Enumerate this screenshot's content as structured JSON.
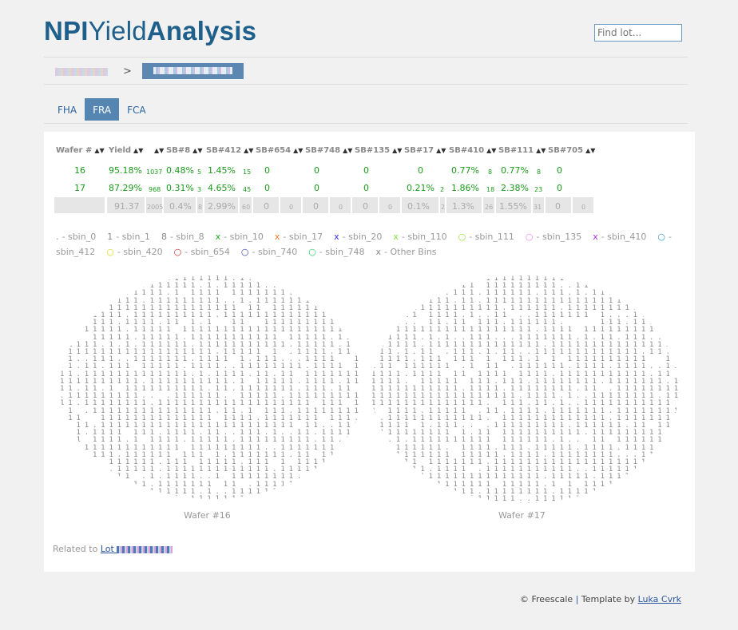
{
  "logo": {
    "part1": "NPI",
    "part2": "Yield",
    "part3": "Analysis"
  },
  "search": {
    "placeholder": "Find lot..."
  },
  "breadcrumb": {
    "separator": ">"
  },
  "tabs": [
    {
      "label": "FHA",
      "active": false
    },
    {
      "label": "FRA",
      "active": true
    },
    {
      "label": "FCA",
      "active": false
    }
  ],
  "table": {
    "headers": [
      "Wafer #",
      "Yield",
      "SB#8",
      "SB#412",
      "SB#654",
      "SB#748",
      "SB#135",
      "SB#17",
      "SB#410",
      "SB#111",
      "SB#705"
    ],
    "rows": [
      {
        "wafer": "16",
        "yield": "95.18%",
        "yield_count": "1037",
        "sb8": "0.48%",
        "sb8_c": "5",
        "sb412": "1.45%",
        "sb412_c": "15",
        "sb654": "0",
        "sb748": "0",
        "sb135": "0",
        "sb17": "0",
        "sb17_c": "",
        "sb410": "0.77%",
        "sb410_c": "8",
        "sb111": "0.77%",
        "sb111_c": "8",
        "sb705": "0"
      },
      {
        "wafer": "17",
        "yield": "87.29%",
        "yield_count": "968",
        "sb8": "0.31%",
        "sb8_c": "3",
        "sb412": "4.65%",
        "sb412_c": "45",
        "sb654": "0",
        "sb748": "0",
        "sb135": "0",
        "sb17": "0.21%",
        "sb17_c": "2",
        "sb410": "1.86%",
        "sb410_c": "18",
        "sb111": "2.38%",
        "sb111_c": "23",
        "sb705": "0"
      }
    ],
    "summary": {
      "yield": "91.37",
      "yield_count": "2005",
      "sb8": "0.4%",
      "sb8_c": "8",
      "sb412": "2.99%",
      "sb412_c": "60",
      "sb654": "0",
      "sb654_c": "0",
      "sb748": "0",
      "sb748_c": "0",
      "sb135": "0",
      "sb135_c": "0",
      "sb17": "0.1%",
      "sb17_c": "2",
      "sb410": "1.3%",
      "sb410_c": "26",
      "sb111": "1.55%",
      "sb111_c": "31",
      "sb705": "0",
      "sb705_c": "0"
    }
  },
  "legend": [
    {
      "mark": ".",
      "label": "- sbin_0",
      "color": "#888888"
    },
    {
      "mark": "1",
      "label": "- sbin_1",
      "color": "#888888"
    },
    {
      "mark": "8",
      "label": "- sbin_8",
      "color": "#888888"
    },
    {
      "mark": "x",
      "label": "- sbin_10",
      "color": "#22aa22"
    },
    {
      "mark": "x",
      "label": "- sbin_17",
      "color": "#ee7722"
    },
    {
      "mark": "x",
      "label": "- sbin_20",
      "color": "#3333dd"
    },
    {
      "mark": "x",
      "label": "- sbin_110",
      "color": "#88dd44"
    },
    {
      "mark": "○",
      "label": "- sbin_111",
      "color": "#99dd33"
    },
    {
      "mark": "○",
      "label": "- sbin_135",
      "color": "#ee88ee"
    },
    {
      "mark": "x",
      "label": "- sbin_410",
      "color": "#aa33dd"
    },
    {
      "mark": "○",
      "label": "- sbin_412",
      "color": "#3399cc"
    },
    {
      "mark": "○",
      "label": "- sbin_420",
      "color": "#dddd22"
    },
    {
      "mark": "○",
      "label": "- sbin_654",
      "color": "#cc3333"
    },
    {
      "mark": "○",
      "label": "- sbin_740",
      "color": "#4444aa"
    },
    {
      "mark": "○",
      "label": "- sbin_748",
      "color": "#33cc66"
    },
    {
      "mark": "x",
      "label": "- Other Bins",
      "color": "#888888"
    }
  ],
  "wafers": [
    {
      "caption": "Wafer #16"
    },
    {
      "caption": "Wafer #17"
    }
  ],
  "related": {
    "prefix": "Related to ",
    "link": "Lot"
  },
  "footer": {
    "copyright": "© Freescale",
    "separator": "|",
    "template": "Template by",
    "author": "Luka Cvrk"
  }
}
